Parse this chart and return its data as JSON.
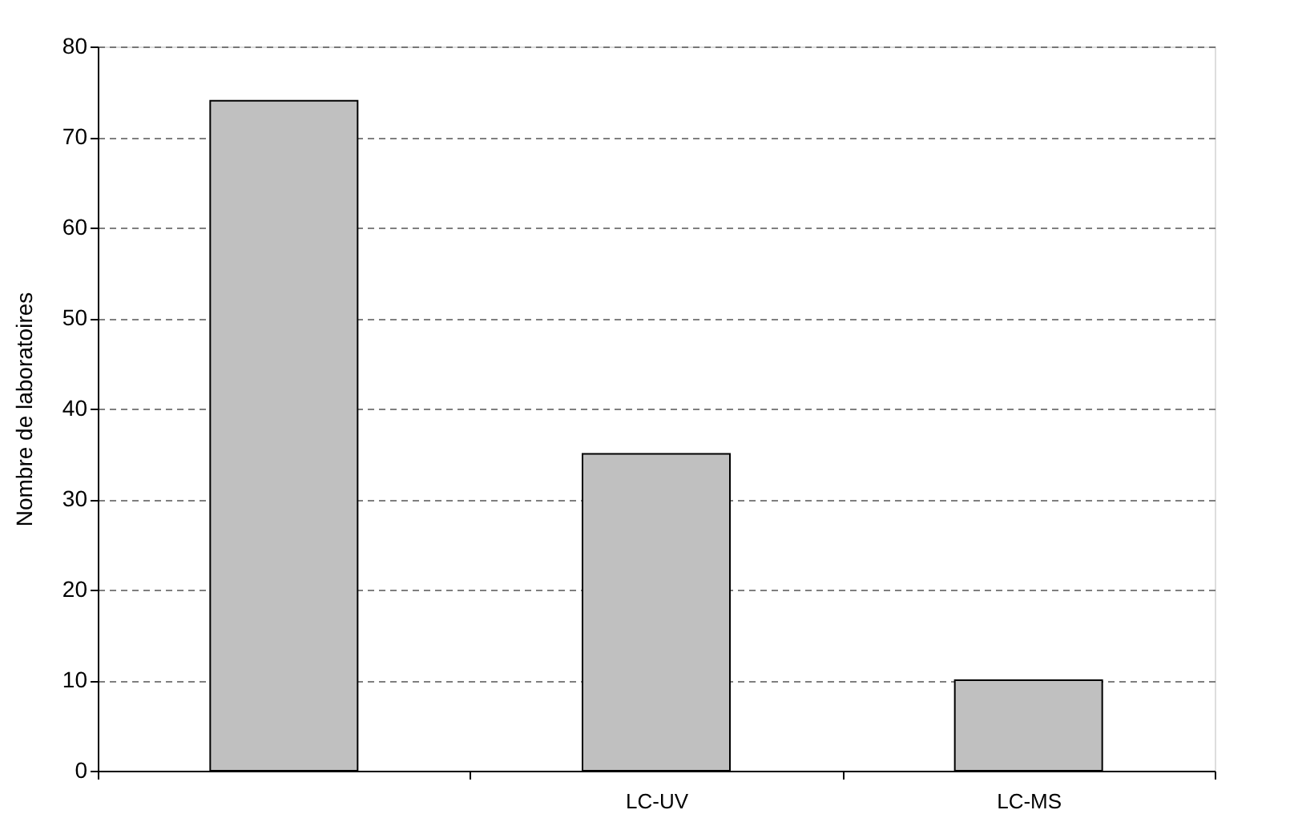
{
  "chart_data": {
    "type": "bar",
    "ylabel": "Nombre de laboratoires",
    "categories": [
      null,
      "LC-UV",
      "LC-MS"
    ],
    "values": [
      74,
      35,
      10
    ],
    "color": "#c0c0c0",
    "ylim": [
      0,
      80
    ],
    "yticks": [
      0,
      10,
      20,
      30,
      40,
      50,
      60,
      70,
      80
    ],
    "grid": "y"
  }
}
